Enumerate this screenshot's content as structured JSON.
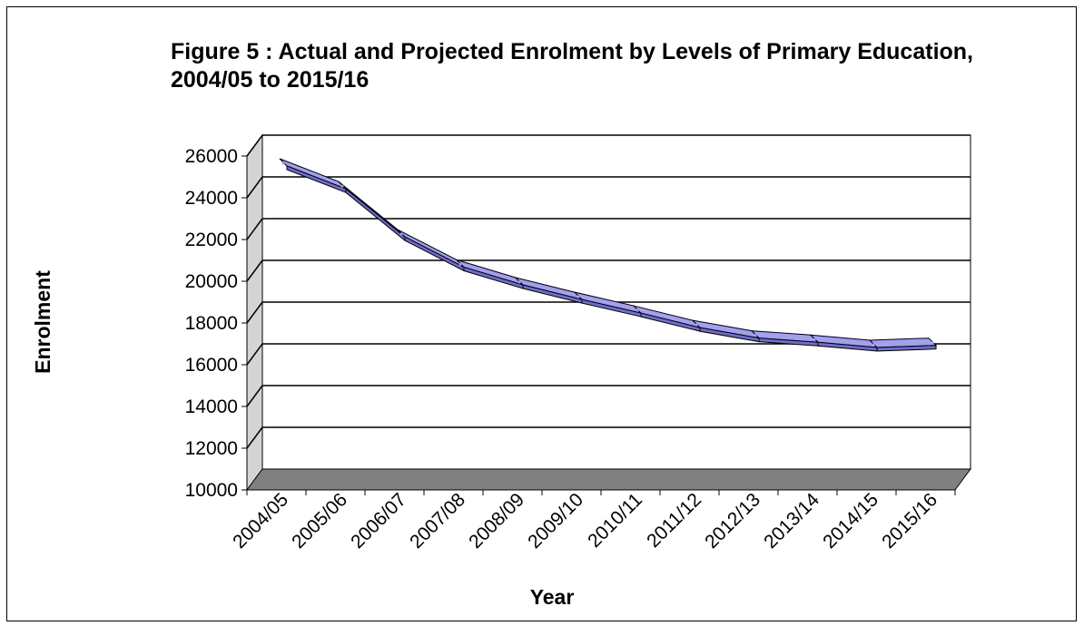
{
  "chart_data": {
    "type": "line",
    "title": "Figure 5 : Actual and Projected Enrolment by Levels of Primary Education, 2004/05 to 2015/16",
    "xlabel": "Year",
    "ylabel": "Enrolment",
    "categories": [
      "2004/05",
      "2005/06",
      "2006/07",
      "2007/08",
      "2008/09",
      "2009/10",
      "2010/11",
      "2011/12",
      "2012/13",
      "2013/14",
      "2014/15",
      "2015/16"
    ],
    "series": [
      {
        "values": [
          25200,
          24100,
          21800,
          20350,
          19500,
          18800,
          18150,
          17450,
          16950,
          16750,
          16500,
          16600
        ]
      }
    ],
    "yticks": [
      10000,
      12000,
      14000,
      16000,
      18000,
      20000,
      22000,
      24000,
      26000
    ],
    "ylim": [
      10000,
      26000
    ],
    "grid": true,
    "legend": "none",
    "style": "3d",
    "colors": {
      "line_top": "#a3a0ec",
      "line_front": "#6e6cd4",
      "line_edge": "#000000",
      "wall": "#d4d4d4",
      "floor": "#808080",
      "gridline": "#000000"
    }
  }
}
